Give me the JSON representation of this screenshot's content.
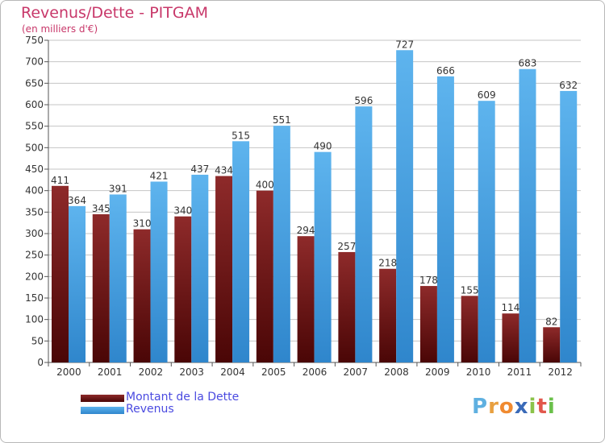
{
  "title": "Revenus/Dette - PITGAM",
  "subtitle": "(en milliers d'€)",
  "logo": {
    "text": "Proxiti",
    "letters": [
      "P",
      "r",
      "o",
      "x",
      "i",
      "t",
      "i"
    ],
    "colors": [
      "#5fb0e0",
      "#e8a040",
      "#f08a30",
      "#3a6ab8",
      "#8bc34a",
      "#e2574c",
      "#6ac04a"
    ]
  },
  "colors": {
    "dette": "#7a1a1a",
    "revenus": "#4da6e6",
    "title": "#c8386a",
    "legend_text": "#4a4ae0"
  },
  "chart_data": {
    "type": "bar",
    "title": "Revenus/Dette - PITGAM",
    "subtitle": "(en milliers d'€)",
    "categories": [
      "2000",
      "2001",
      "2002",
      "2003",
      "2004",
      "2005",
      "2006",
      "2007",
      "2008",
      "2009",
      "2010",
      "2011",
      "2012"
    ],
    "series": [
      {
        "name": "Montant de la Dette",
        "color": "#7a1a1a",
        "values": [
          411,
          345,
          310,
          340,
          434,
          400,
          294,
          257,
          218,
          178,
          155,
          114,
          82
        ]
      },
      {
        "name": "Revenus",
        "color": "#4da6e6",
        "values": [
          364,
          391,
          421,
          437,
          515,
          551,
          490,
          596,
          727,
          666,
          609,
          683,
          632
        ]
      }
    ],
    "ylim": [
      0,
      750
    ],
    "yticks": [
      0,
      50,
      100,
      150,
      200,
      250,
      300,
      350,
      400,
      450,
      500,
      550,
      600,
      650,
      700,
      750
    ],
    "grid": true,
    "legend": "bottom-left",
    "data_labels": true
  }
}
